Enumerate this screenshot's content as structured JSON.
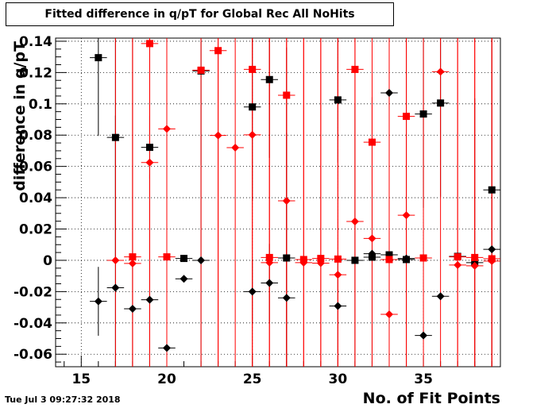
{
  "title": "Fitted difference in q/pT for Global Rec All NoHits",
  "timestamp": "Tue Jul  3 09:27:32 2018",
  "chart_data": {
    "type": "scatter",
    "title": "Fitted difference in q/pT for Global Rec All NoHits",
    "xlabel": "No. of Fit Points",
    "ylabel": "difference in q/pT",
    "xlim": [
      13.5,
      39.5
    ],
    "ylim": [
      -0.068,
      0.142
    ],
    "xticks": [
      15,
      20,
      25,
      30,
      35
    ],
    "yticks": [
      -0.06,
      -0.04,
      -0.02,
      0,
      0.02,
      0.04,
      0.06,
      0.08,
      0.1,
      0.12,
      0.14
    ],
    "ytick_labels": [
      "-0.06",
      "-0.04",
      "-0.02",
      "0",
      "0.02",
      "0.04",
      "0.06",
      "0.08",
      "0.1",
      "0.12",
      "0.14"
    ],
    "grid": true,
    "series": [
      {
        "marker": "square",
        "color": "#000000",
        "points": [
          {
            "x": 16,
            "y": 0.1295,
            "err": 0.05
          },
          {
            "x": 17,
            "y": 0.0785,
            "err": 0.08
          },
          {
            "x": 19,
            "y": 0.0722,
            "err": 0.02
          },
          {
            "x": 21,
            "y": 0.0012,
            "err": 0.0
          },
          {
            "x": 22,
            "y": 0.121,
            "err": 0.06
          },
          {
            "x": 25,
            "y": 0.098,
            "err": 0.06
          },
          {
            "x": 26,
            "y": 0.1155,
            "err": 0.05
          },
          {
            "x": 27,
            "y": 0.0015,
            "err": 0.08
          },
          {
            "x": 30,
            "y": 0.1025,
            "err": 0.04
          },
          {
            "x": 31,
            "y": 0.0,
            "err": 0.1
          },
          {
            "x": 32,
            "y": 0.002,
            "err": 0.0
          },
          {
            "x": 33,
            "y": 0.0035,
            "err": 0.0
          },
          {
            "x": 34,
            "y": 0.0005,
            "err": 0.0
          },
          {
            "x": 35,
            "y": 0.0935,
            "err": 0.06
          },
          {
            "x": 36,
            "y": 0.1005,
            "err": 0.06
          },
          {
            "x": 37,
            "y": 0.0025,
            "err": 0.0
          },
          {
            "x": 38,
            "y": -0.0015,
            "err": 0.105
          },
          {
            "x": 39,
            "y": 0.045,
            "err": 0.12
          }
        ]
      },
      {
        "marker": "diamond",
        "color": "#000000",
        "points": [
          {
            "x": 16,
            "y": -0.0262,
            "err": 0.022
          },
          {
            "x": 17,
            "y": -0.0175,
            "err": 0.11
          },
          {
            "x": 18,
            "y": -0.031,
            "err": 0.18
          },
          {
            "x": 19,
            "y": -0.0252,
            "err": 0.08
          },
          {
            "x": 20,
            "y": -0.056,
            "err": 0.0
          },
          {
            "x": 21,
            "y": -0.0118,
            "err": 0.0
          },
          {
            "x": 22,
            "y": 0.0,
            "err": 0.14
          },
          {
            "x": 25,
            "y": -0.02,
            "err": 0.02
          },
          {
            "x": 26,
            "y": -0.0145,
            "err": 0.025
          },
          {
            "x": 27,
            "y": -0.024,
            "err": 0.16
          },
          {
            "x": 30,
            "y": -0.0292,
            "err": 0.03
          },
          {
            "x": 32,
            "y": 0.0042,
            "err": 0.1
          },
          {
            "x": 33,
            "y": 0.107,
            "err": 0.018
          },
          {
            "x": 34,
            "y": 0.0012,
            "err": 0.14
          },
          {
            "x": 35,
            "y": -0.048,
            "err": 0.0
          },
          {
            "x": 36,
            "y": -0.023,
            "err": 0.0
          },
          {
            "x": 39,
            "y": 0.007,
            "err": 0.0
          }
        ]
      },
      {
        "marker": "square",
        "color": "#ff0000",
        "points": [
          {
            "x": 18,
            "y": 0.0022,
            "err": 0.16
          },
          {
            "x": 19,
            "y": 0.1385,
            "err": 0.2
          },
          {
            "x": 20,
            "y": 0.0022,
            "err": 0.2
          },
          {
            "x": 22,
            "y": 0.1215,
            "err": 0.2
          },
          {
            "x": 23,
            "y": 0.134,
            "err": 0.2
          },
          {
            "x": 25,
            "y": 0.122,
            "err": 0.2
          },
          {
            "x": 26,
            "y": 0.0018,
            "err": 0.2
          },
          {
            "x": 27,
            "y": 0.1055,
            "err": 0.2
          },
          {
            "x": 28,
            "y": 0.0005,
            "err": 0.2
          },
          {
            "x": 29,
            "y": 0.0012,
            "err": 0.2
          },
          {
            "x": 30,
            "y": 0.0008,
            "err": 0.2
          },
          {
            "x": 31,
            "y": 0.122,
            "err": 0.2
          },
          {
            "x": 32,
            "y": 0.0755,
            "err": 0.027
          },
          {
            "x": 33,
            "y": 0.0005,
            "err": 0.2
          },
          {
            "x": 34,
            "y": 0.092,
            "err": 0.2
          },
          {
            "x": 35,
            "y": 0.0015,
            "err": 0.2
          },
          {
            "x": 37,
            "y": 0.0022,
            "err": 0.2
          },
          {
            "x": 38,
            "y": 0.0018,
            "err": 0.2
          },
          {
            "x": 39,
            "y": 0.001,
            "err": 0.2
          }
        ]
      },
      {
        "marker": "diamond",
        "color": "#ff0000",
        "points": [
          {
            "x": 17,
            "y": 0.0,
            "err": 0.2
          },
          {
            "x": 18,
            "y": -0.002,
            "err": 0.2
          },
          {
            "x": 19,
            "y": 0.0625,
            "err": 0.2
          },
          {
            "x": 20,
            "y": 0.084,
            "err": 0.2
          },
          {
            "x": 23,
            "y": 0.0798,
            "err": 0.2
          },
          {
            "x": 24,
            "y": 0.072,
            "err": 0.2
          },
          {
            "x": 25,
            "y": 0.0802,
            "err": 0.2
          },
          {
            "x": 26,
            "y": -0.0015,
            "err": 0.2
          },
          {
            "x": 27,
            "y": 0.038,
            "err": 0.2
          },
          {
            "x": 28,
            "y": -0.0015,
            "err": 0.2
          },
          {
            "x": 29,
            "y": -0.0018,
            "err": 0.2
          },
          {
            "x": 30,
            "y": -0.0092,
            "err": 0.2
          },
          {
            "x": 31,
            "y": 0.0248,
            "err": 0.2
          },
          {
            "x": 32,
            "y": 0.014,
            "err": 0.2
          },
          {
            "x": 33,
            "y": -0.0345,
            "err": 0.0
          },
          {
            "x": 34,
            "y": 0.0288,
            "err": 0.2
          },
          {
            "x": 36,
            "y": 0.1205,
            "err": 0.2
          },
          {
            "x": 37,
            "y": -0.003,
            "err": 0.2
          },
          {
            "x": 38,
            "y": -0.0035,
            "err": 0.2
          },
          {
            "x": 39,
            "y": -0.0005,
            "err": 0.2
          }
        ]
      }
    ]
  }
}
